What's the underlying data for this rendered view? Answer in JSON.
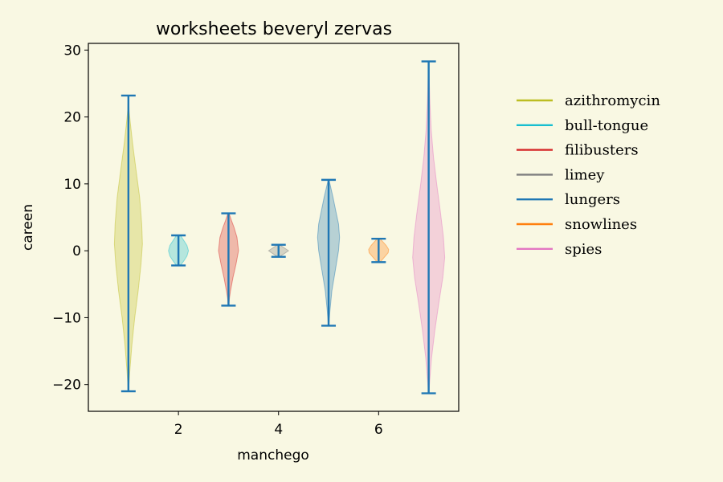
{
  "chart_data": {
    "type": "violin",
    "title": "worksheets beveryl zervas",
    "xlabel": "manchego",
    "ylabel": "careen",
    "xlim": [
      0.2,
      7.6
    ],
    "ylim": [
      -24,
      31
    ],
    "xticks": [
      2,
      4,
      6
    ],
    "yticks": [
      -20,
      -10,
      0,
      10,
      20,
      30
    ],
    "yticklabels": [
      "−20",
      "−10",
      "0",
      "10",
      "20",
      "30"
    ],
    "grid": false,
    "legend_position": "right",
    "extrema_color": "#1f77b4",
    "series": [
      {
        "name": "azithromycin",
        "x": 1,
        "min": -21,
        "max": 23.2,
        "color": "#bcbd22",
        "half_width": 0.28,
        "profile": [
          [
            -21,
            0.01
          ],
          [
            -18,
            0.1
          ],
          [
            -14,
            0.25
          ],
          [
            -10,
            0.45
          ],
          [
            -6,
            0.7
          ],
          [
            -2,
            0.9
          ],
          [
            1,
            1.0
          ],
          [
            4,
            0.95
          ],
          [
            8,
            0.8
          ],
          [
            12,
            0.55
          ],
          [
            16,
            0.3
          ],
          [
            19,
            0.14
          ],
          [
            21,
            0.05
          ],
          [
            23.2,
            0.01
          ]
        ]
      },
      {
        "name": "bull-tongue",
        "x": 2,
        "min": -2.2,
        "max": 2.3,
        "color": "#17becf",
        "half_width": 0.2,
        "profile": [
          [
            -2.2,
            0.2
          ],
          [
            -1.5,
            0.55
          ],
          [
            -0.8,
            0.85
          ],
          [
            0,
            1.0
          ],
          [
            0.8,
            0.85
          ],
          [
            1.5,
            0.55
          ],
          [
            2.3,
            0.2
          ]
        ]
      },
      {
        "name": "filibusters",
        "x": 3,
        "min": -8.2,
        "max": 5.6,
        "color": "#d62728",
        "half_width": 0.2,
        "profile": [
          [
            -8.2,
            0.02
          ],
          [
            -7,
            0.1
          ],
          [
            -6,
            0.2
          ],
          [
            -4,
            0.45
          ],
          [
            -2,
            0.75
          ],
          [
            0,
            1.0
          ],
          [
            2,
            0.85
          ],
          [
            3.5,
            0.55
          ],
          [
            4.5,
            0.3
          ],
          [
            5.6,
            0.05
          ]
        ]
      },
      {
        "name": "limey",
        "x": 4,
        "min": -0.9,
        "max": 0.9,
        "color": "#7f7f7f",
        "half_width": 0.2,
        "profile": [
          [
            -0.9,
            0.1
          ],
          [
            -0.5,
            0.5
          ],
          [
            0,
            1.0
          ],
          [
            0.5,
            0.5
          ],
          [
            0.9,
            0.1
          ]
        ]
      },
      {
        "name": "lungers",
        "x": 5,
        "min": -11.2,
        "max": 10.6,
        "color": "#1f77b4",
        "half_width": 0.22,
        "profile": [
          [
            -11.2,
            0.02
          ],
          [
            -9,
            0.12
          ],
          [
            -6,
            0.3
          ],
          [
            -3,
            0.6
          ],
          [
            0,
            0.9
          ],
          [
            2,
            1.0
          ],
          [
            4,
            0.9
          ],
          [
            6,
            0.65
          ],
          [
            8,
            0.4
          ],
          [
            10,
            0.12
          ],
          [
            10.6,
            0.03
          ]
        ]
      },
      {
        "name": "snowlines",
        "x": 6,
        "min": -1.7,
        "max": 1.8,
        "color": "#ff7f0e",
        "half_width": 0.2,
        "profile": [
          [
            -1.7,
            0.15
          ],
          [
            -1,
            0.55
          ],
          [
            -0.3,
            0.95
          ],
          [
            0.2,
            1.0
          ],
          [
            0.8,
            0.75
          ],
          [
            1.3,
            0.45
          ],
          [
            1.8,
            0.15
          ]
        ]
      },
      {
        "name": "spies",
        "x": 7,
        "min": -21.3,
        "max": 28.3,
        "color": "#e377c2",
        "half_width": 0.32,
        "profile": [
          [
            -21.3,
            0.01
          ],
          [
            -19,
            0.08
          ],
          [
            -16,
            0.18
          ],
          [
            -12,
            0.38
          ],
          [
            -8,
            0.62
          ],
          [
            -4,
            0.88
          ],
          [
            -1,
            1.0
          ],
          [
            2,
            0.92
          ],
          [
            6,
            0.72
          ],
          [
            10,
            0.5
          ],
          [
            14,
            0.3
          ],
          [
            18,
            0.16
          ],
          [
            22,
            0.08
          ],
          [
            26,
            0.03
          ],
          [
            28.3,
            0.01
          ]
        ]
      }
    ]
  }
}
